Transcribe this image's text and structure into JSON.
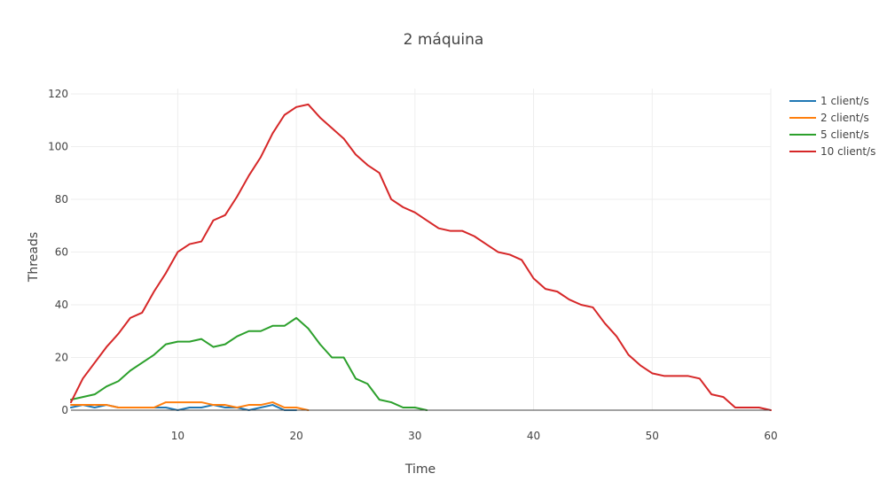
{
  "chart_data": {
    "type": "line",
    "title": "2 máquina",
    "xlabel": "Time",
    "ylabel": "Threads",
    "xlim": [
      1,
      60
    ],
    "ylim": [
      0,
      122
    ],
    "xticks": [
      10,
      20,
      30,
      40,
      50,
      60
    ],
    "yticks": [
      0,
      20,
      40,
      60,
      80,
      100,
      120
    ],
    "grid": true,
    "legend_position": "top-right",
    "series": [
      {
        "name": "1 client/s",
        "color": "#1f77b4",
        "x": [
          1,
          2,
          3,
          4,
          5,
          6,
          7,
          8,
          9,
          10,
          11,
          12,
          13,
          14,
          15,
          16,
          17,
          18,
          19,
          20
        ],
        "values": [
          1,
          2,
          1,
          2,
          1,
          1,
          1,
          1,
          1,
          0,
          1,
          1,
          2,
          1,
          1,
          0,
          1,
          2,
          0,
          0
        ]
      },
      {
        "name": "2 client/s",
        "color": "#ff7f0e",
        "x": [
          1,
          2,
          3,
          4,
          5,
          6,
          7,
          8,
          9,
          10,
          11,
          12,
          13,
          14,
          15,
          16,
          17,
          18,
          19,
          20,
          21
        ],
        "values": [
          2,
          2,
          2,
          2,
          1,
          1,
          1,
          1,
          3,
          3,
          3,
          3,
          2,
          2,
          1,
          2,
          2,
          3,
          1,
          1,
          0
        ]
      },
      {
        "name": "5 client/s",
        "color": "#2ca02c",
        "x": [
          1,
          2,
          3,
          4,
          5,
          6,
          7,
          8,
          9,
          10,
          11,
          12,
          13,
          14,
          15,
          16,
          17,
          18,
          19,
          20,
          21,
          22,
          23,
          24,
          25,
          26,
          27,
          28,
          29,
          30,
          31
        ],
        "values": [
          4,
          5,
          6,
          9,
          11,
          15,
          18,
          21,
          25,
          26,
          26,
          27,
          24,
          25,
          28,
          30,
          30,
          32,
          32,
          35,
          31,
          25,
          20,
          20,
          12,
          10,
          4,
          3,
          1,
          1,
          0
        ]
      },
      {
        "name": "10 client/s",
        "color": "#d62728",
        "x": [
          1,
          2,
          3,
          4,
          5,
          6,
          7,
          8,
          9,
          10,
          11,
          12,
          13,
          14,
          15,
          16,
          17,
          18,
          19,
          20,
          21,
          22,
          23,
          24,
          25,
          26,
          27,
          28,
          29,
          30,
          31,
          32,
          33,
          34,
          35,
          36,
          37,
          38,
          39,
          40,
          41,
          42,
          43,
          44,
          45,
          46,
          47,
          48,
          49,
          50,
          51,
          52,
          53,
          54,
          55,
          56,
          57,
          58,
          59,
          60
        ],
        "values": [
          3,
          12,
          18,
          24,
          29,
          35,
          37,
          45,
          52,
          60,
          63,
          64,
          72,
          74,
          81,
          89,
          96,
          105,
          112,
          115,
          116,
          111,
          107,
          103,
          97,
          93,
          90,
          80,
          77,
          75,
          72,
          69,
          68,
          68,
          66,
          63,
          60,
          59,
          57,
          50,
          46,
          45,
          42,
          40,
          39,
          33,
          28,
          21,
          17,
          14,
          13,
          13,
          13,
          12,
          6,
          5,
          1,
          1,
          1,
          0
        ]
      }
    ]
  }
}
